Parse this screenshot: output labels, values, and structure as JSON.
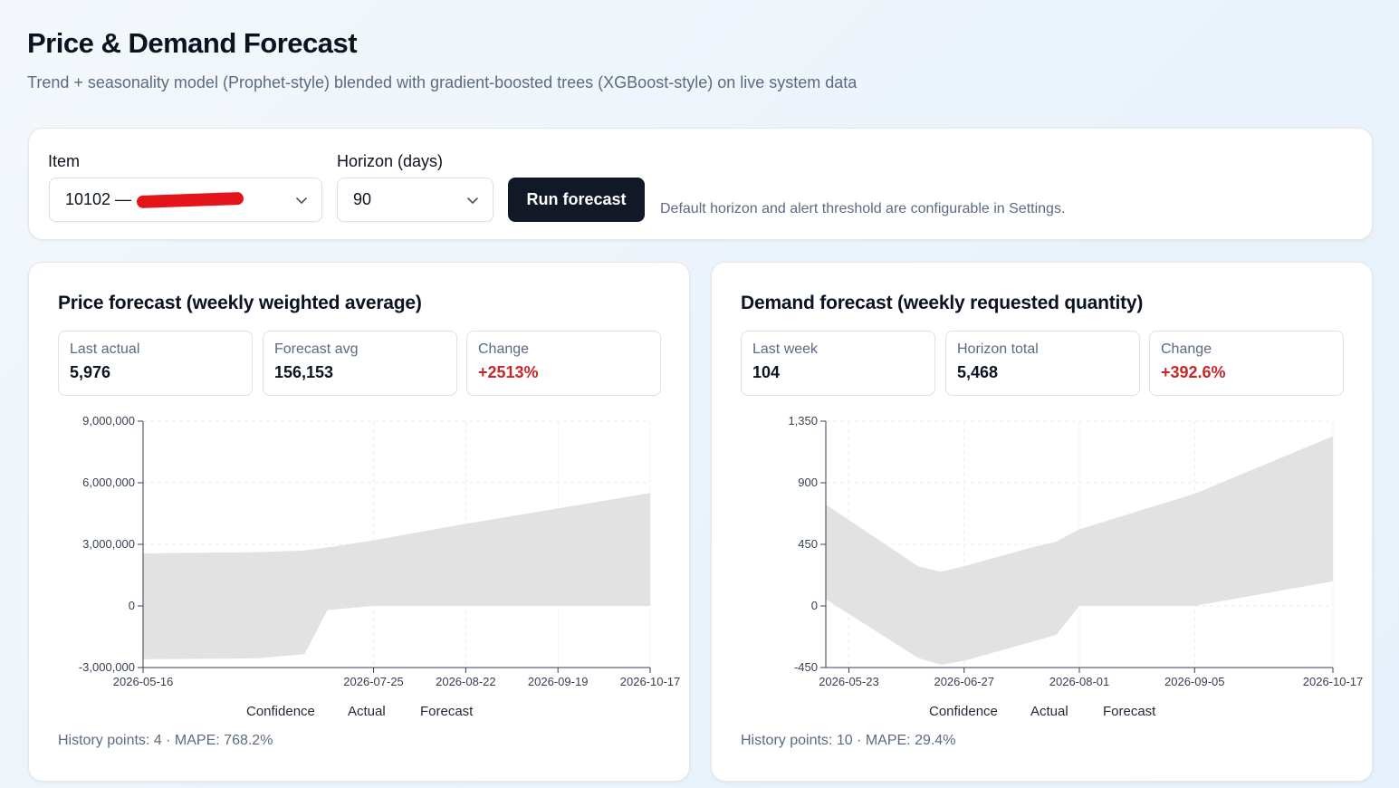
{
  "header": {
    "title": "Price & Demand Forecast",
    "subtitle": "Trend + seasonality model (Prophet-style) blended with gradient-boosted trees (XGBoost-style) on live system data"
  },
  "controls": {
    "item_label": "Item",
    "item_value": "10102 —",
    "horizon_label": "Horizon (days)",
    "horizon_value": "90",
    "run_button": "Run forecast",
    "hint": "Default horizon and alert threshold are configurable in Settings."
  },
  "price": {
    "title": "Price forecast (weekly weighted average)",
    "stats": [
      {
        "label": "Last actual",
        "value": "5,976",
        "trend": "neutral"
      },
      {
        "label": "Forecast avg",
        "value": "156,153",
        "trend": "neutral"
      },
      {
        "label": "Change",
        "value": "+2513%",
        "trend": "up"
      }
    ],
    "legend": [
      "Confidence",
      "Actual",
      "Forecast"
    ],
    "footnote": "History points: 4 · MAPE: 768.2%"
  },
  "demand": {
    "title": "Demand forecast (weekly requested quantity)",
    "stats": [
      {
        "label": "Last week",
        "value": "104",
        "trend": "neutral"
      },
      {
        "label": "Horizon total",
        "value": "5,468",
        "trend": "neutral"
      },
      {
        "label": "Change",
        "value": "+392.6%",
        "trend": "up"
      }
    ],
    "legend": [
      "Confidence",
      "Actual",
      "Forecast"
    ],
    "footnote": "History points: 10 · MAPE: 29.4%"
  },
  "colors": {
    "confidence_band": "#e2e2e2",
    "up": "#c62828",
    "button": "#111827"
  },
  "chart_data": [
    {
      "type": "area",
      "x_type": "date",
      "ylim": [
        -3000000,
        9000000
      ],
      "yticks": [
        -3000000,
        0,
        3000000,
        6000000,
        9000000
      ],
      "ytick_labels": [
        "-3,000,000",
        "0",
        "3,000,000",
        "6,000,000",
        "9,000,000"
      ],
      "xlim": [
        "2026-05-16",
        "2026-10-17"
      ],
      "xticks": [
        "2026-05-16",
        "2026-07-25",
        "2026-08-22",
        "2026-09-19",
        "2026-10-17"
      ],
      "grid": true,
      "legend_position": "bottom",
      "series": [
        {
          "name": "Confidence",
          "x": [
            "2026-05-16",
            "2026-06-20",
            "2026-07-04",
            "2026-07-11",
            "2026-07-25",
            "2026-08-22",
            "2026-09-19",
            "2026-10-17"
          ],
          "upper": [
            2560000,
            2620000,
            2700000,
            2850000,
            3200000,
            4000000,
            4750000,
            5500000
          ],
          "lower": [
            -2600000,
            -2550000,
            -2350000,
            -200000,
            0,
            0,
            0,
            0
          ]
        },
        {
          "name": "Actual",
          "x": [],
          "y": []
        },
        {
          "name": "Forecast",
          "x": [],
          "y": []
        }
      ]
    },
    {
      "type": "area",
      "x_type": "date",
      "ylim": [
        -450,
        1350
      ],
      "yticks": [
        -450,
        0,
        450,
        900,
        1350
      ],
      "ytick_labels": [
        "-450",
        "0",
        "450",
        "900",
        "1,350"
      ],
      "xlim": [
        "2026-05-16",
        "2026-10-17"
      ],
      "xticks": [
        "2026-05-23",
        "2026-06-27",
        "2026-08-01",
        "2026-09-05",
        "2026-10-17"
      ],
      "grid": true,
      "legend_position": "bottom",
      "series": [
        {
          "name": "Confidence",
          "x": [
            "2026-05-16",
            "2026-06-13",
            "2026-06-20",
            "2026-06-27",
            "2026-07-18",
            "2026-07-25",
            "2026-08-01",
            "2026-09-05",
            "2026-10-17"
          ],
          "upper": [
            740,
            290,
            250,
            290,
            430,
            470,
            560,
            820,
            1240
          ],
          "lower": [
            50,
            -380,
            -430,
            -400,
            -260,
            -210,
            0,
            0,
            180
          ]
        },
        {
          "name": "Actual",
          "x": [],
          "y": []
        },
        {
          "name": "Forecast",
          "x": [],
          "y": []
        }
      ]
    }
  ]
}
